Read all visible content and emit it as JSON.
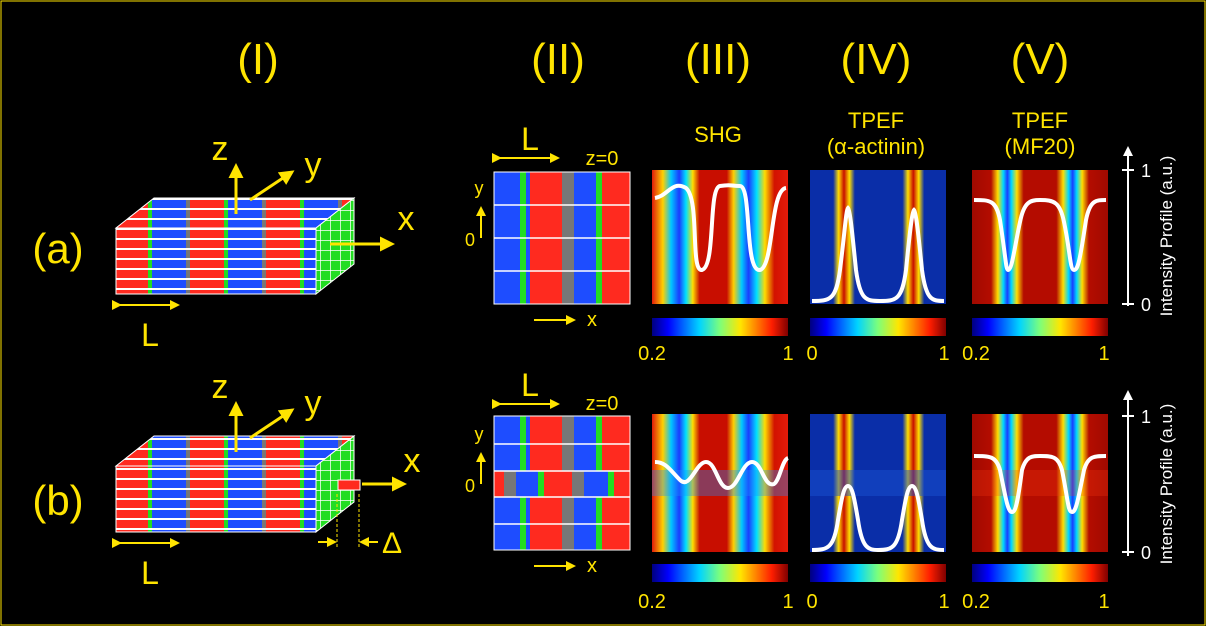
{
  "columns": {
    "c1": "(I)",
    "c2": "(II)",
    "c3": "(III)",
    "c4": "(IV)",
    "c5": "(V)"
  },
  "rows": {
    "a": "(a)",
    "b": "(b)"
  },
  "headers": {
    "shg": "SHG",
    "tpef1_line1": "TPEF",
    "tpef1_line2": "(α-actinin)",
    "tpef2_line1": "TPEF",
    "tpef2_line2": "(MF20)"
  },
  "axes": {
    "x": "x",
    "y": "y",
    "z": "z",
    "L": "L",
    "z0": "z=0",
    "origin": "0",
    "delta": "Δ"
  },
  "colorbars": {
    "shg": {
      "min": "0.2",
      "max": "1"
    },
    "tpef1": {
      "min": "0",
      "max": "1"
    },
    "tpef2": {
      "min": "0.2",
      "max": "1"
    }
  },
  "profile_axis": {
    "label": "Intensity Profile (a.u.)",
    "tick_top": "1",
    "tick_bottom": "0"
  },
  "colors": {
    "yellow": "#ffe400",
    "red": "#ff2a1f",
    "blue": "#1e4dff",
    "green": "#22dd22"
  }
}
